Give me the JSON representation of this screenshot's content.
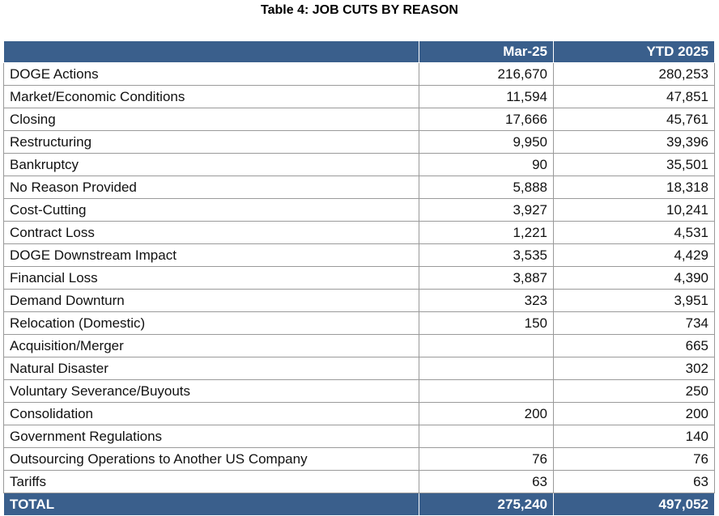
{
  "title": "Table 4: JOB CUTS BY REASON",
  "columns": {
    "reason": "",
    "month": "Mar-25",
    "ytd": "YTD 2025"
  },
  "rows": [
    {
      "reason": "DOGE Actions",
      "month": "216,670",
      "ytd": "280,253"
    },
    {
      "reason": "Market/Economic Conditions",
      "month": "11,594",
      "ytd": "47,851"
    },
    {
      "reason": "Closing",
      "month": "17,666",
      "ytd": "45,761"
    },
    {
      "reason": "Restructuring",
      "month": "9,950",
      "ytd": "39,396"
    },
    {
      "reason": "Bankruptcy",
      "month": "90",
      "ytd": "35,501"
    },
    {
      "reason": "No Reason Provided",
      "month": "5,888",
      "ytd": "18,318"
    },
    {
      "reason": "Cost-Cutting",
      "month": "3,927",
      "ytd": "10,241"
    },
    {
      "reason": "Contract Loss",
      "month": "1,221",
      "ytd": "4,531"
    },
    {
      "reason": "DOGE Downstream Impact",
      "month": "3,535",
      "ytd": "4,429"
    },
    {
      "reason": "Financial Loss",
      "month": "3,887",
      "ytd": "4,390"
    },
    {
      "reason": "Demand Downturn",
      "month": "323",
      "ytd": "3,951"
    },
    {
      "reason": "Relocation (Domestic)",
      "month": "150",
      "ytd": "734"
    },
    {
      "reason": "Acquisition/Merger",
      "month": "",
      "ytd": "665"
    },
    {
      "reason": "Natural Disaster",
      "month": "",
      "ytd": "302"
    },
    {
      "reason": "Voluntary Severance/Buyouts",
      "month": "",
      "ytd": "250"
    },
    {
      "reason": "Consolidation",
      "month": "200",
      "ytd": "200"
    },
    {
      "reason": "Government Regulations",
      "month": "",
      "ytd": "140"
    },
    {
      "reason": "Outsourcing Operations to Another US Company",
      "month": "76",
      "ytd": "76"
    },
    {
      "reason": "Tariffs",
      "month": "63",
      "ytd": "63"
    }
  ],
  "total": {
    "label": "TOTAL",
    "month": "275,240",
    "ytd": "497,052"
  },
  "colors": {
    "header_bg": "#3a5f8c",
    "header_text": "#ffffff",
    "border": "#9a9a9a"
  }
}
